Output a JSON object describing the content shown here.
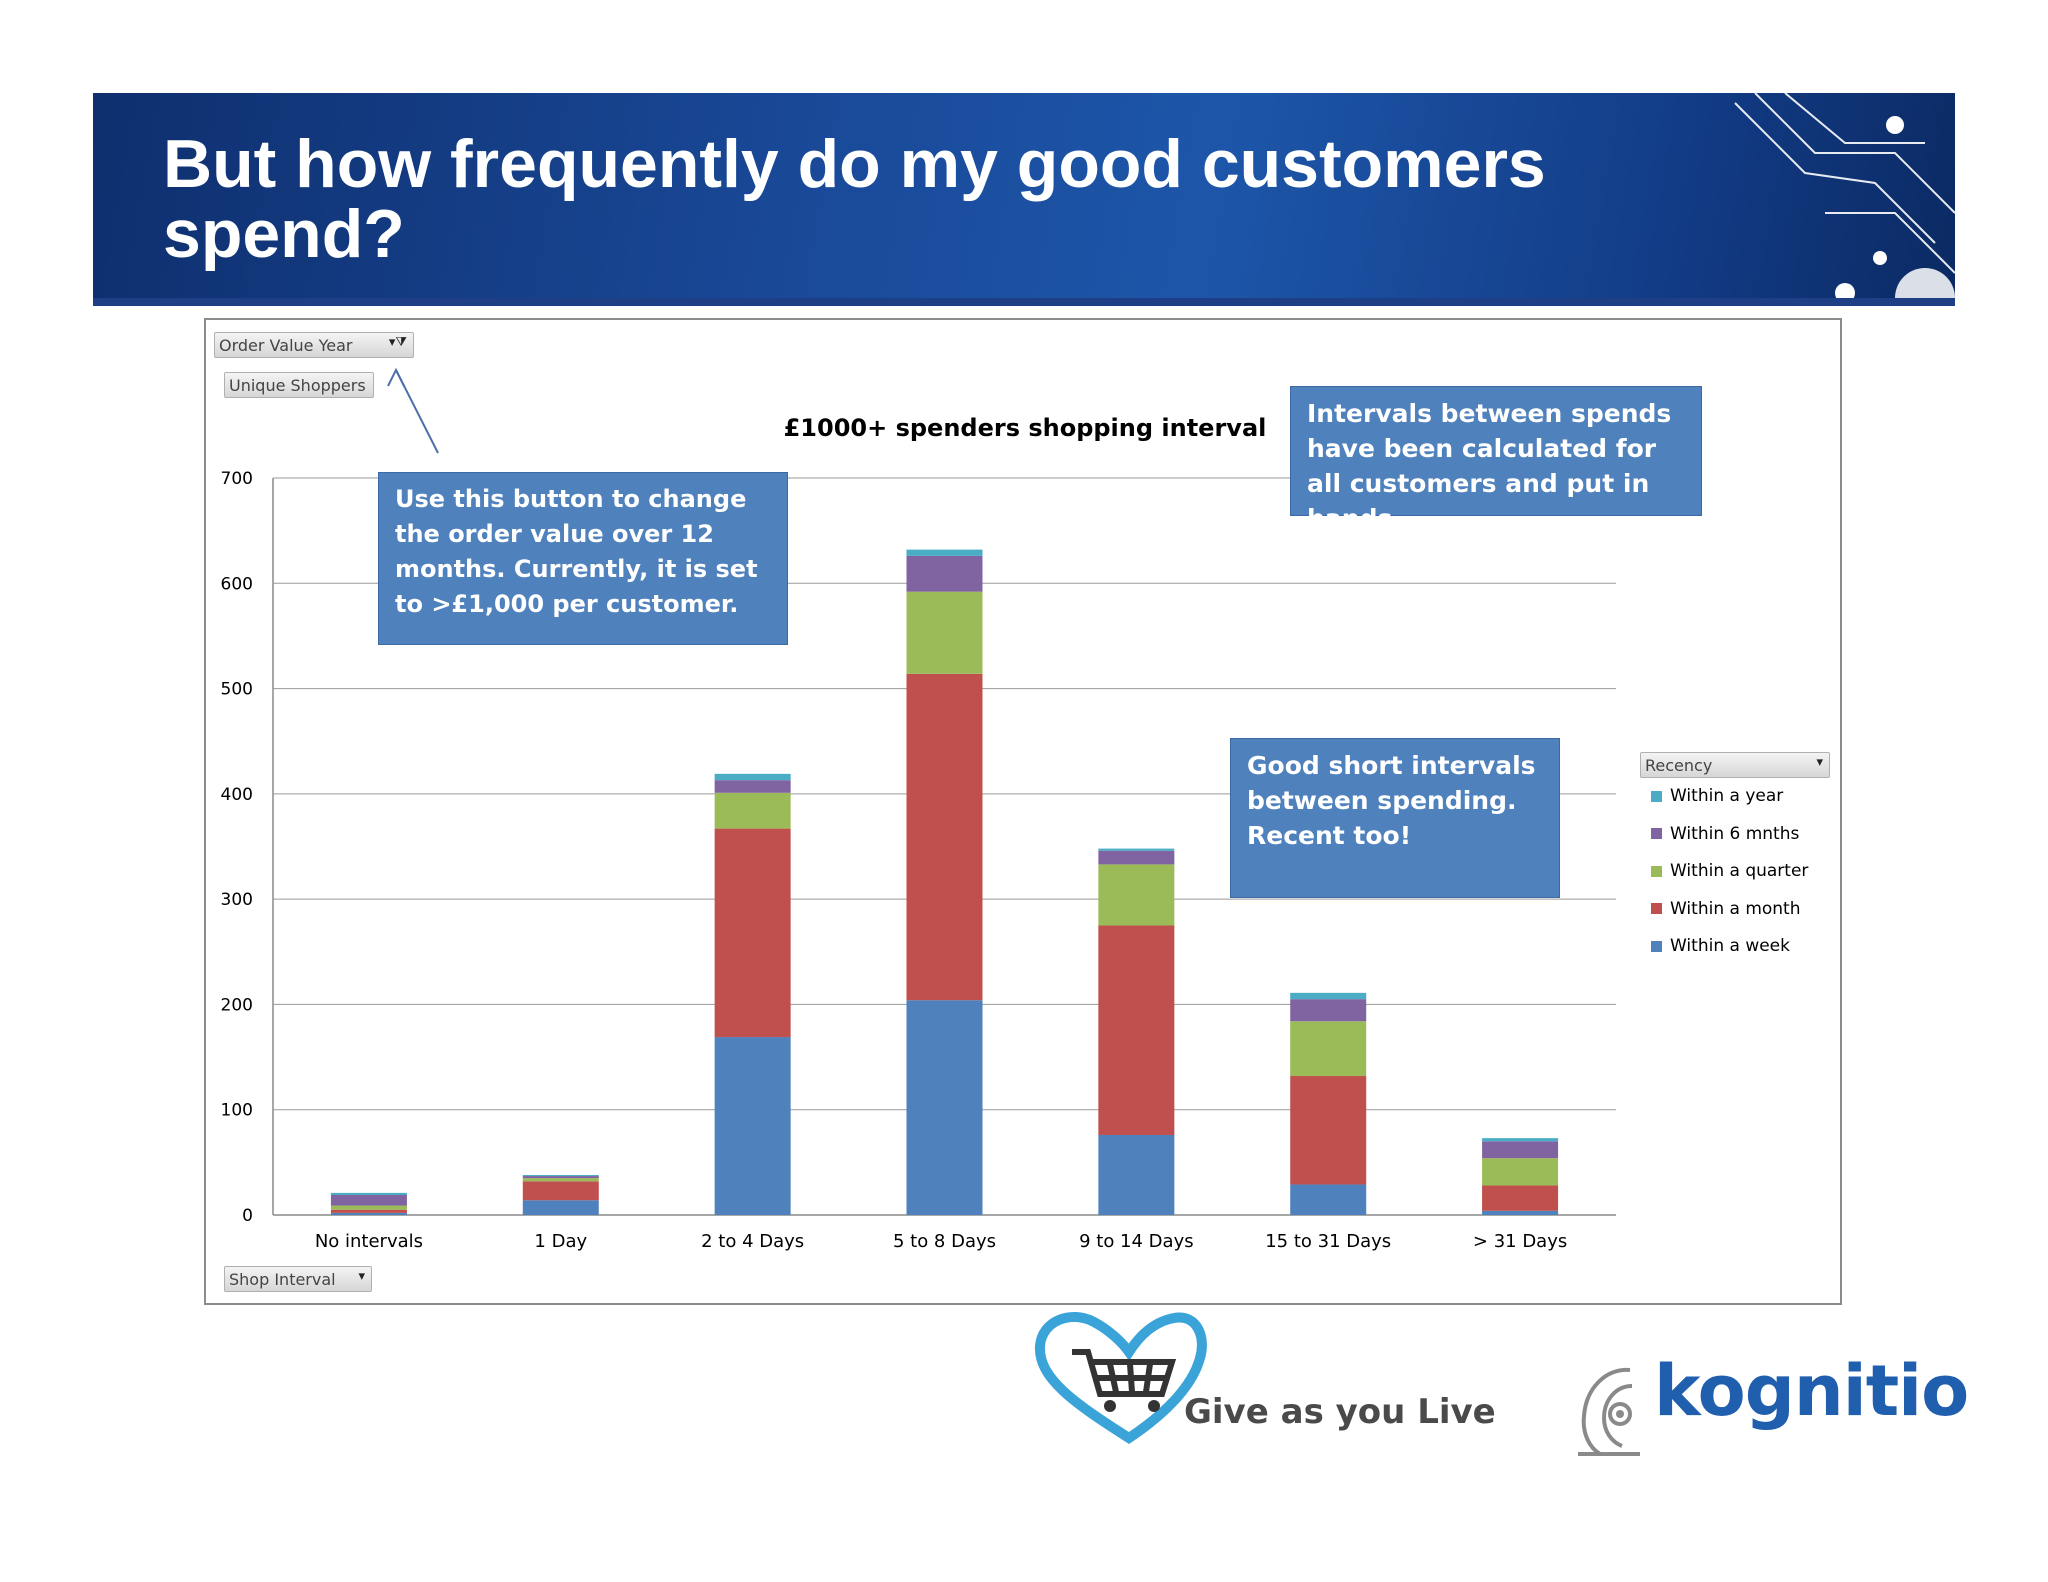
{
  "slide": {
    "title": "But how frequently do my good customers spend?"
  },
  "pivot": {
    "filter_button": "Order Value Year",
    "values_button": "Unique Shoppers",
    "axis_button": "Shop Interval",
    "legend_button": "Recency"
  },
  "callouts": {
    "button_note": "Use this button to change the order value over 12 months. Currently, it is set to >£1,000 per customer.",
    "bands_note": "Intervals between spends have been calculated for all customers and put in bands",
    "good_note": "Good short intervals between spending. Recent too!"
  },
  "logos": {
    "gayl_text": "Give as you Live",
    "kognitio_text": "kognitio"
  },
  "chart_data": {
    "type": "bar",
    "stacked": true,
    "title": "£1000+ spenders shopping interval",
    "xlabel": "",
    "ylabel": "",
    "ylim": [
      0,
      700
    ],
    "yticks": [
      0,
      100,
      200,
      300,
      400,
      500,
      600,
      700
    ],
    "grid": true,
    "legend_position": "right",
    "categories": [
      "No intervals",
      "1 Day",
      "2 to 4 Days",
      "5 to 8 Days",
      "9 to 14 Days",
      "15 to 31 Days",
      "> 31 Days"
    ],
    "series": [
      {
        "name": "Within a week",
        "color": "#4f81bd",
        "values": [
          2,
          14,
          169,
          204,
          76,
          29,
          4
        ]
      },
      {
        "name": "Within a month",
        "color": "#c0504d",
        "values": [
          3,
          18,
          198,
          310,
          199,
          103,
          24
        ]
      },
      {
        "name": "Within a quarter",
        "color": "#9bbb59",
        "values": [
          4,
          3,
          34,
          78,
          58,
          52,
          26
        ]
      },
      {
        "name": "Within 6 mnths",
        "color": "#8064a2",
        "values": [
          10,
          2,
          12,
          34,
          13,
          21,
          16
        ]
      },
      {
        "name": "Within a year",
        "color": "#4bacc6",
        "values": [
          2,
          1,
          6,
          6,
          2,
          6,
          3
        ]
      }
    ],
    "legend_order": [
      "Within a year",
      "Within 6 mnths",
      "Within a quarter",
      "Within a month",
      "Within a week"
    ]
  }
}
